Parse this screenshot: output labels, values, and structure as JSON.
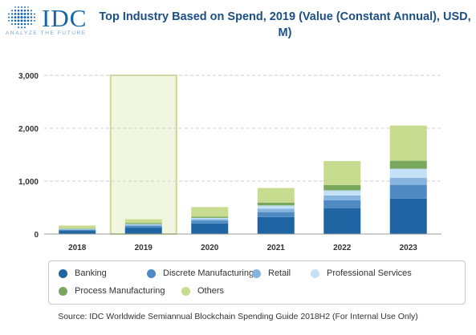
{
  "logo": {
    "word": "IDC",
    "tagline": "ANALYZE THE FUTURE"
  },
  "colors": {
    "logo_blue": "#1464a8",
    "highlight_fill": "#f1f6e1",
    "highlight_border": "#c9db8f"
  },
  "chart_data": {
    "type": "bar",
    "stacked": true,
    "title": "Top Industry Based on Spend, 2019 (Value (Constant Annual), USD, M)",
    "categories": [
      "2018",
      "2019",
      "2020",
      "2021",
      "2022",
      "2023"
    ],
    "highlighted_category": "2019",
    "ylim": [
      0,
      3000
    ],
    "yticks": [
      0,
      1000,
      2000,
      3000
    ],
    "ytick_labels": [
      "0",
      "1,000",
      "2,000",
      "3,000"
    ],
    "grid": true,
    "legend_position": "bottom",
    "series": [
      {
        "name": "Banking",
        "color": "#1f65a3",
        "values": [
          60,
          120,
          200,
          320,
          490,
          670
        ]
      },
      {
        "name": "Discrete Manufacturing",
        "color": "#4f8ac3",
        "values": [
          20,
          35,
          50,
          95,
          150,
          260
        ]
      },
      {
        "name": "Retail",
        "color": "#86b4de",
        "values": [
          10,
          20,
          30,
          65,
          90,
          130
        ]
      },
      {
        "name": "Professional Services",
        "color": "#c4e0f6",
        "values": [
          10,
          15,
          25,
          60,
          95,
          175
        ]
      },
      {
        "name": "Process Manufacturing",
        "color": "#78a85d",
        "values": [
          10,
          20,
          25,
          55,
          100,
          150
        ]
      },
      {
        "name": "Others",
        "color": "#c7dc8e",
        "values": [
          50,
          70,
          180,
          275,
          455,
          665
        ]
      }
    ]
  },
  "source": "Source: IDC Worldwide Semiannual Blockchain Spending Guide 2018H2 (For Internal Use Only)"
}
